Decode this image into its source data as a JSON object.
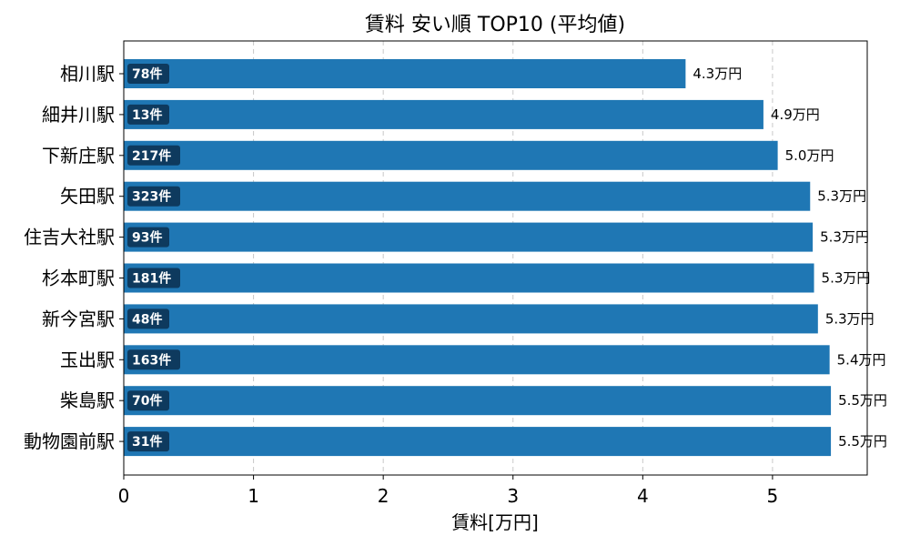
{
  "chart_data": {
    "type": "bar",
    "orientation": "horizontal",
    "title": "賃料 安い順 TOP10 (平均値)",
    "xlabel": "賃料[万円]",
    "ylabel": "",
    "xlim": [
      0,
      5.73
    ],
    "xticks": [
      0,
      1,
      2,
      3,
      4,
      5
    ],
    "grid": "x-dashed",
    "bar_color": "#1f77b4",
    "badge_color": "#0e3a5e",
    "categories": [
      "相川駅",
      "細井川駅",
      "下新庄駅",
      "矢田駅",
      "住吉大社駅",
      "杉本町駅",
      "新今宮駅",
      "玉出駅",
      "柴島駅",
      "動物園前駅"
    ],
    "values": [
      4.33,
      4.93,
      5.04,
      5.29,
      5.31,
      5.32,
      5.35,
      5.44,
      5.45,
      5.45
    ],
    "value_labels": [
      "4.3万円",
      "4.9万円",
      "5.0万円",
      "5.3万円",
      "5.3万円",
      "5.3万円",
      "5.3万円",
      "5.4万円",
      "5.5万円",
      "5.5万円"
    ],
    "counts": [
      "78件",
      "13件",
      "217件",
      "323件",
      "93件",
      "181件",
      "48件",
      "163件",
      "70件",
      "31件"
    ]
  }
}
